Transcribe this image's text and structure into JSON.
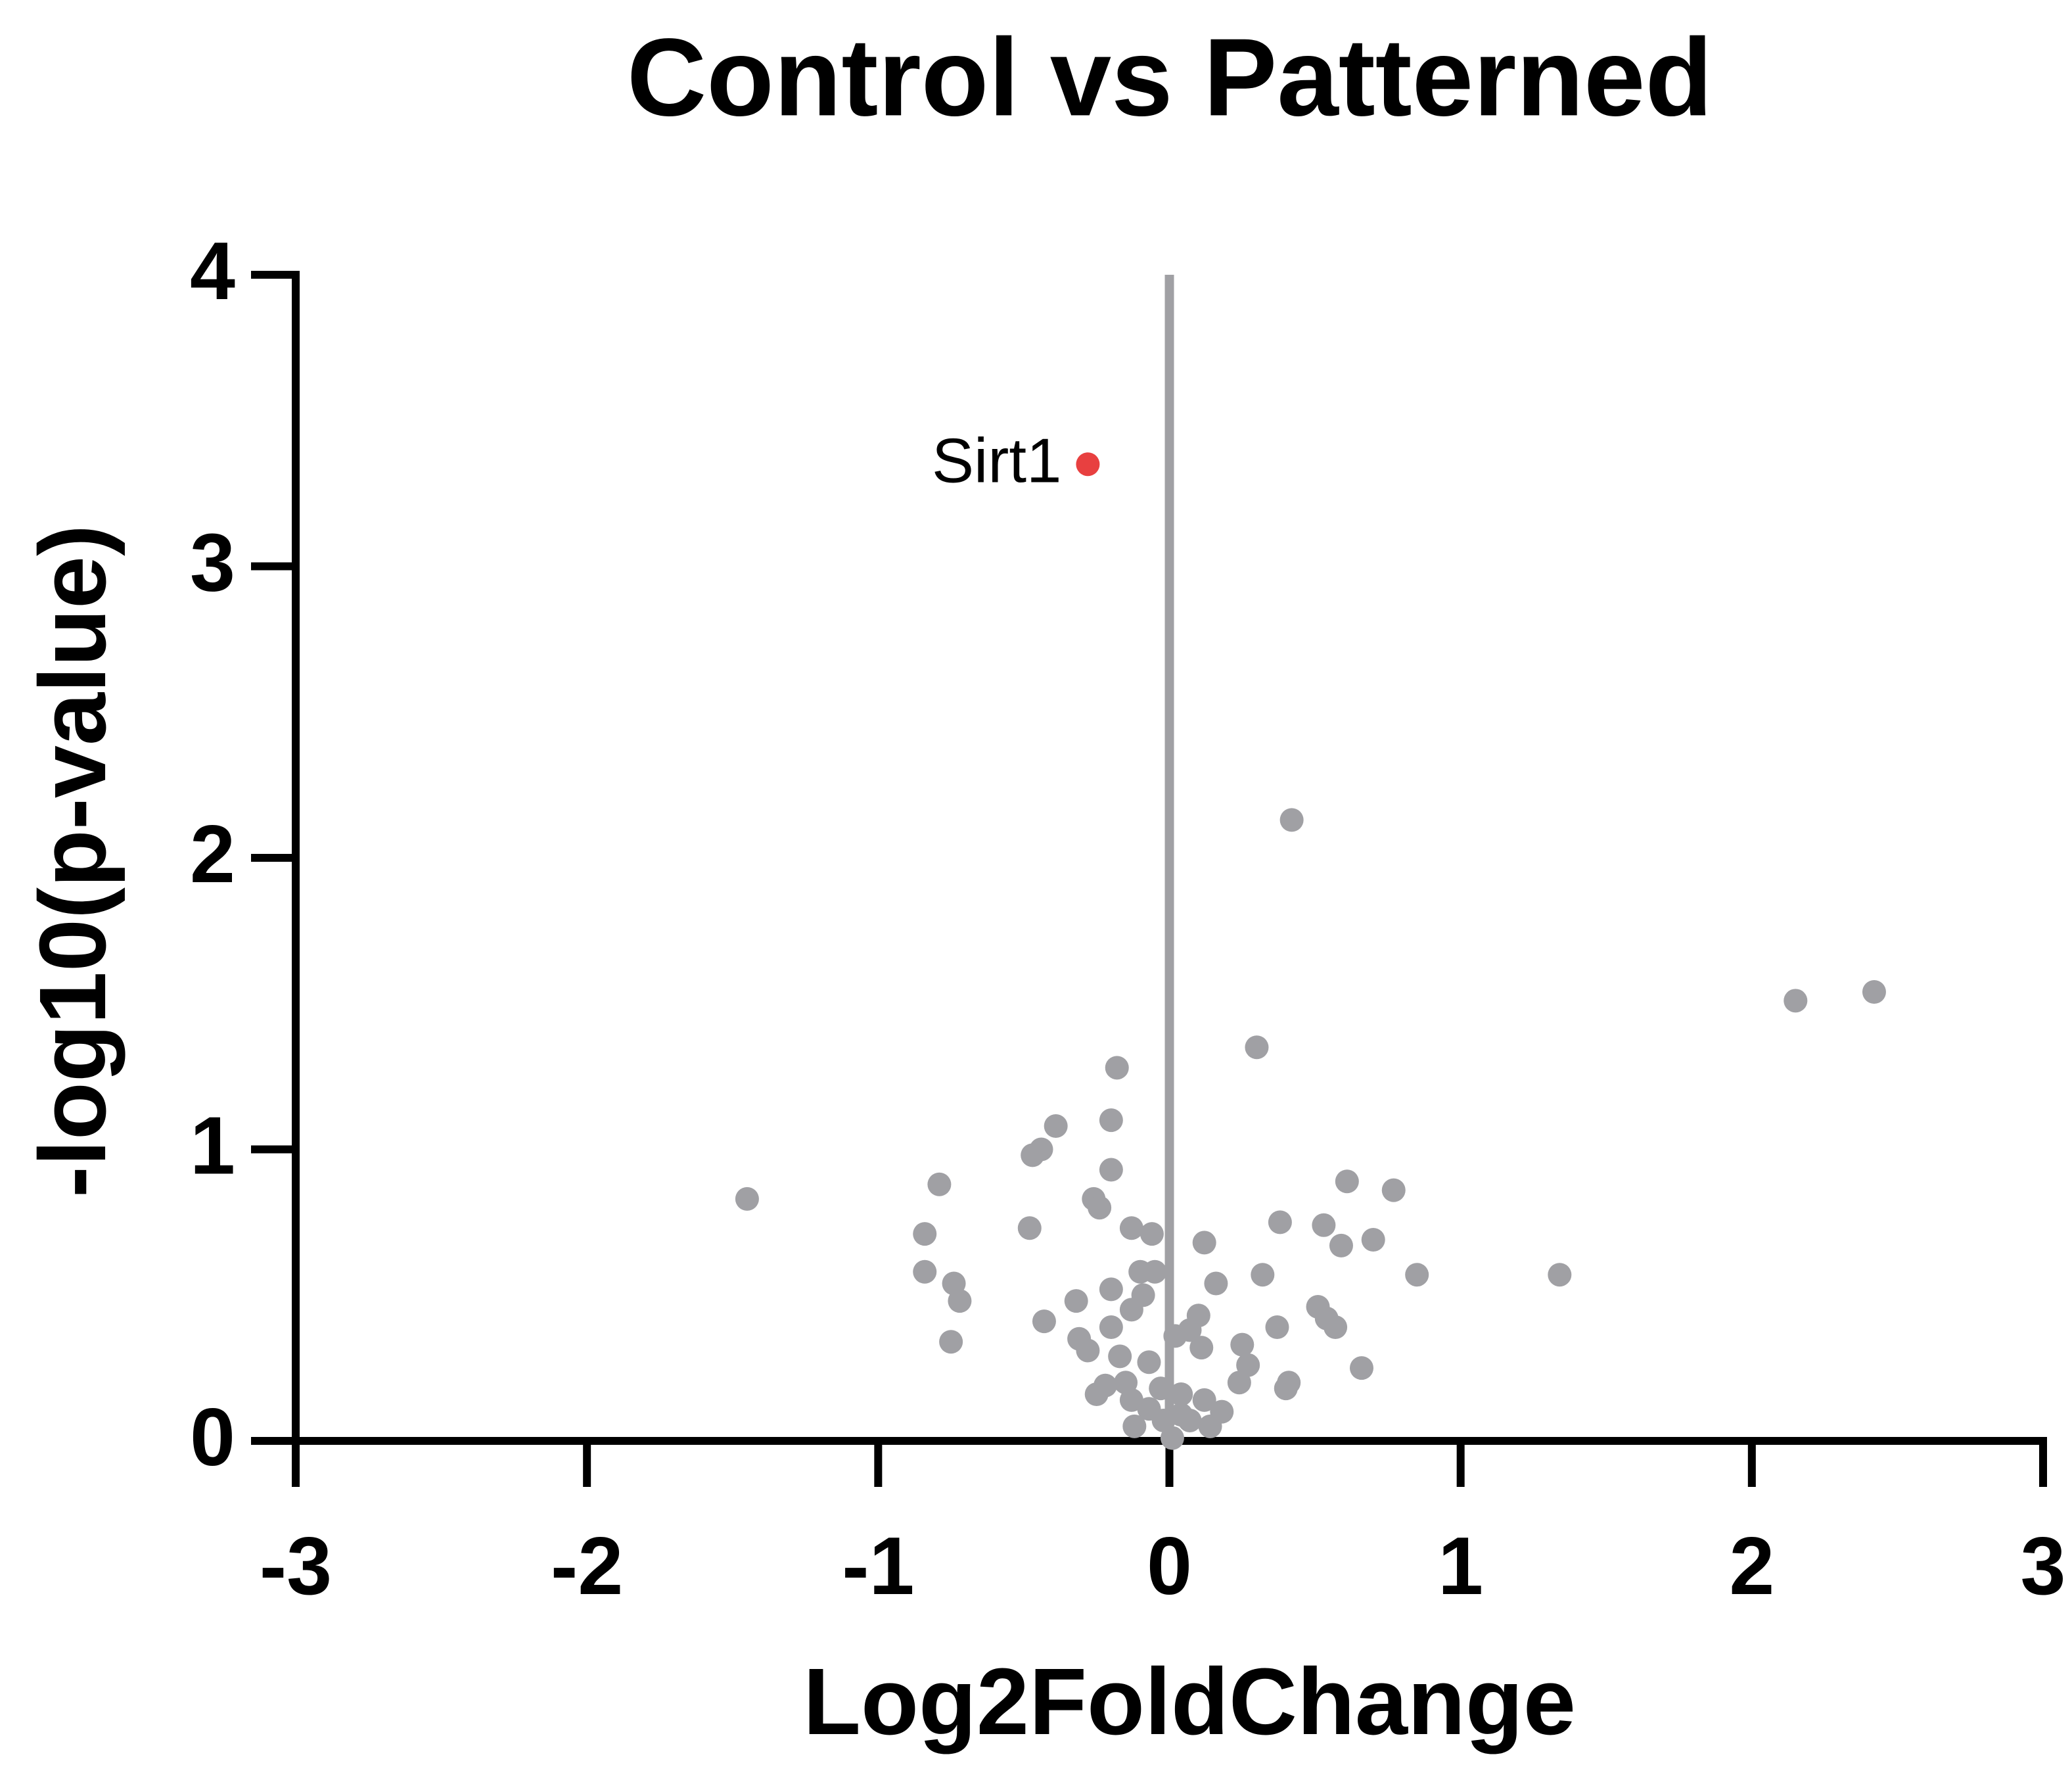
{
  "chart_data": {
    "type": "scatter",
    "title": "Control vs Patterned",
    "xlabel": "Log2FoldChange",
    "ylabel": "-log10(p-value)",
    "xlim": [
      -3,
      3
    ],
    "ylim": [
      0,
      4
    ],
    "xticks": [
      -3,
      -2,
      -1,
      0,
      1,
      2,
      3
    ],
    "yticks": [
      0,
      1,
      2,
      3,
      4
    ],
    "reference_line_x": 0,
    "reference_line_color": "#a0a0a4",
    "points": {
      "color": "#a0a0a4",
      "x": [
        0.42,
        2.42,
        2.15,
        0.3,
        -0.18,
        -0.39,
        -0.2,
        -0.47,
        -0.44,
        -0.2,
        -0.79,
        -1.45,
        -0.26,
        -0.24,
        0.61,
        0.77,
        0.38,
        0.53,
        -0.13,
        -0.06,
        -0.48,
        -0.84,
        0.12,
        0.7,
        0.59,
        -0.84,
        -0.74,
        -0.72,
        -0.1,
        -0.05,
        0.16,
        0.32,
        0.85,
        1.34,
        -0.2,
        -0.32,
        -0.09,
        -0.13,
        0.51,
        0.54,
        0.57,
        0.37,
        -0.43,
        -0.2,
        0.1,
        -0.31,
        -0.28,
        -0.75,
        0.07,
        0.25,
        0.11,
        0.27,
        0.66,
        -0.17,
        -0.07,
        0.02,
        0.24,
        0.41,
        0.4,
        -0.22,
        -0.25,
        -0.15,
        -0.03,
        -0.13,
        0.04,
        0.18,
        0.12,
        -0.12,
        -0.02,
        0.07,
        0.14,
        0.01,
        0.04,
        -0.07
      ],
      "y": [
        2.13,
        1.54,
        1.51,
        1.35,
        1.28,
        1.08,
        1.1,
        0.98,
        1.0,
        0.93,
        0.88,
        0.83,
        0.83,
        0.8,
        0.89,
        0.86,
        0.75,
        0.74,
        0.73,
        0.71,
        0.73,
        0.71,
        0.68,
        0.69,
        0.67,
        0.58,
        0.54,
        0.48,
        0.58,
        0.58,
        0.54,
        0.57,
        0.57,
        0.57,
        0.52,
        0.48,
        0.5,
        0.45,
        0.46,
        0.42,
        0.39,
        0.39,
        0.41,
        0.39,
        0.43,
        0.35,
        0.31,
        0.34,
        0.38,
        0.33,
        0.32,
        0.26,
        0.25,
        0.29,
        0.27,
        0.36,
        0.2,
        0.2,
        0.18,
        0.19,
        0.16,
        0.2,
        0.18,
        0.14,
        0.16,
        0.1,
        0.14,
        0.05,
        0.07,
        0.07,
        0.05,
        0.01,
        0.09,
        0.11
      ]
    },
    "highlight": {
      "label": "Sirt1",
      "x": -0.28,
      "y": 3.35,
      "color": "#e84040"
    }
  }
}
